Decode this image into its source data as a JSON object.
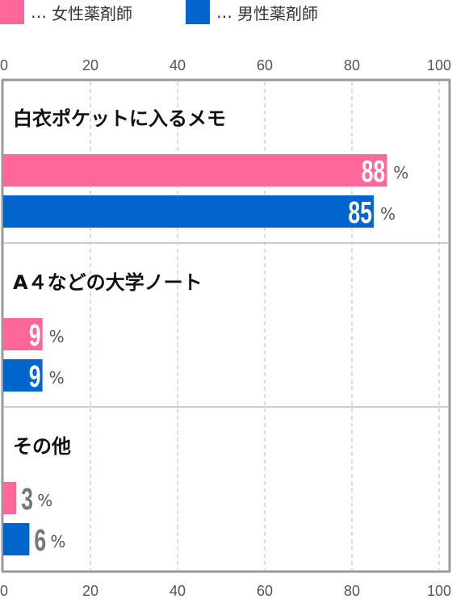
{
  "legend": [
    {
      "marker": "…",
      "label": "女性薬剤師",
      "color": "#ff6699"
    },
    {
      "marker": "…",
      "label": "男性薬剤師",
      "color": "#0066cc"
    }
  ],
  "unit": "%",
  "chart_data": {
    "type": "bar",
    "orientation": "horizontal",
    "categories": [
      "白衣ポケットに入るメモ",
      "A４などの大学ノート",
      "その他"
    ],
    "series": [
      {
        "name": "女性薬剤師",
        "color": "#ff6699",
        "values": [
          88,
          9,
          3
        ]
      },
      {
        "name": "男性薬剤師",
        "color": "#0066cc",
        "values": [
          85,
          9,
          6
        ]
      }
    ],
    "xlim": [
      0,
      100
    ],
    "xticks": [
      0,
      20,
      40,
      60,
      80,
      100
    ],
    "xtick_labels_position": "top-and-bottom",
    "grid": true,
    "legend_position": "top-left"
  }
}
